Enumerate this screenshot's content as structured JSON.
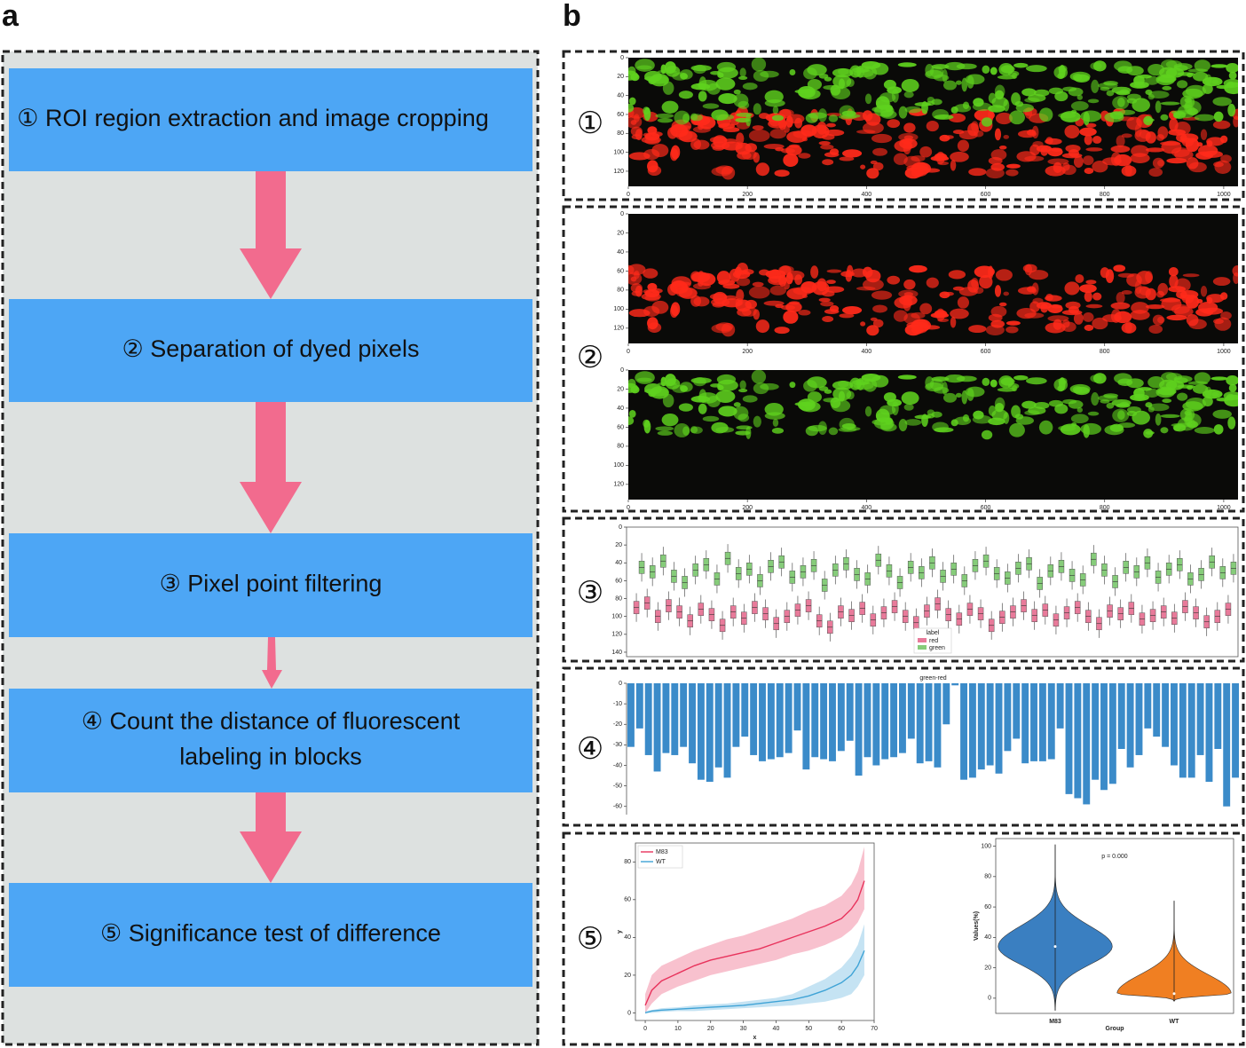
{
  "panel_labels": [
    "a",
    "b"
  ],
  "flowchart": {
    "steps": [
      {
        "lines": [
          "① ROI region extraction and image cropping"
        ]
      },
      {
        "lines": [
          "② Separation of dyed pixels"
        ]
      },
      {
        "lines": [
          "③ Pixel point filtering"
        ]
      },
      {
        "lines": [
          "④ Count the distance of fluorescent",
          "labeling in blocks"
        ]
      },
      {
        "lines": [
          "⑤ Significance test of difference"
        ]
      }
    ]
  },
  "step_markers": [
    "①",
    "②",
    "③",
    "④",
    "⑤"
  ],
  "chart_data": [
    {
      "type": "image",
      "colors": [
        "#ff2a1a",
        "#5fd21e"
      ],
      "xlim": [
        0,
        1024
      ],
      "ylim": [
        0,
        136
      ],
      "xticks": [
        0,
        200,
        400,
        600,
        800,
        1000
      ],
      "yticks": [
        0,
        20,
        40,
        60,
        80,
        100,
        120
      ]
    },
    {
      "type": "image",
      "colors": [
        "#ff2a1a"
      ],
      "xlim": [
        0,
        1024
      ],
      "ylim": [
        0,
        136
      ],
      "xticks": [
        0,
        200,
        400,
        600,
        800,
        1000
      ],
      "yticks": [
        0,
        20,
        40,
        60,
        80,
        100,
        120
      ]
    },
    {
      "type": "image",
      "colors": [
        "#5fd21e"
      ],
      "xlim": [
        0,
        1024
      ],
      "ylim": [
        0,
        136
      ],
      "xticks": [
        0,
        200,
        400,
        600,
        800,
        1000
      ],
      "yticks": [
        0,
        20,
        40,
        60,
        80,
        100,
        120
      ]
    },
    {
      "type": "box",
      "ylim": [
        0,
        145
      ],
      "yticks": [
        0,
        20,
        40,
        60,
        80,
        100,
        120,
        140
      ],
      "legend_title": "label",
      "series": [
        {
          "name": "red",
          "color": "#e87a9a",
          "values": [
            90,
            85,
            100,
            88,
            95,
            105,
            92,
            98,
            110,
            95,
            102,
            90,
            97,
            108,
            100,
            93,
            88,
            105,
            112,
            95,
            99,
            91,
            104,
            96,
            89,
            100,
            107,
            94,
            86,
            98,
            103,
            92,
            97,
            110,
            101,
            95,
            88,
            99,
            93,
            104,
            96,
            90,
            100,
            108,
            94,
            97,
            91,
            103,
            99,
            95,
            102,
            89,
            96,
            106,
            100,
            92
          ]
        },
        {
          "name": "green",
          "color": "#86cc7a",
          "values": [
            45,
            50,
            38,
            55,
            62,
            48,
            42,
            58,
            35,
            52,
            47,
            60,
            44,
            39,
            56,
            50,
            43,
            65,
            48,
            41,
            53,
            58,
            37,
            49,
            62,
            45,
            51,
            40,
            55,
            47,
            60,
            43,
            38,
            52,
            57,
            46,
            41,
            63,
            49,
            44,
            54,
            59,
            36,
            48,
            61,
            45,
            50,
            40,
            56,
            47,
            42,
            58,
            53,
            39,
            51,
            46
          ]
        }
      ]
    },
    {
      "type": "bar",
      "title": "green-red",
      "color": "#3b8bc9",
      "ylim": [
        -64,
        0
      ],
      "yticks": [
        0,
        -10,
        -20,
        -30,
        -40,
        -50,
        -60
      ],
      "values": [
        -31,
        -22,
        -35,
        -43,
        -34,
        -35,
        -31,
        -39,
        -47,
        -48,
        -41,
        -46,
        -31,
        -26,
        -35,
        -38,
        -37,
        -36,
        -34,
        -23,
        -42,
        -36,
        -37,
        -38,
        -33,
        -28,
        -45,
        -36,
        -40,
        -37,
        -36,
        -34,
        -27,
        -39,
        -38,
        -41,
        -20,
        -1,
        -47,
        -46,
        -42,
        -40,
        -44,
        -33,
        -27,
        -39,
        -38,
        -38,
        -37,
        -22,
        -54,
        -56,
        -59,
        -47,
        -52,
        -49,
        -32,
        -41,
        -35,
        -22,
        -26,
        -31,
        -40,
        -46,
        -46,
        -35,
        -48,
        -32,
        -60,
        -46
      ]
    },
    {
      "type": "line",
      "xlabel": "x",
      "ylabel": "y",
      "xlim": [
        -3,
        70
      ],
      "ylim": [
        -4,
        90
      ],
      "xticks": [
        0,
        10,
        20,
        30,
        40,
        50,
        60,
        70
      ],
      "yticks": [
        0,
        20,
        40,
        60,
        80
      ],
      "x": [
        0,
        2,
        5,
        10,
        15,
        20,
        25,
        30,
        35,
        40,
        45,
        50,
        55,
        60,
        63,
        65,
        67
      ],
      "series": [
        {
          "name": "M83",
          "color": "#e8335c",
          "values": [
            4,
            12,
            17,
            21,
            25,
            28,
            30,
            32,
            34,
            37,
            40,
            43,
            46,
            50,
            55,
            60,
            70
          ],
          "upper": [
            10,
            20,
            25,
            29,
            33,
            36,
            39,
            41,
            44,
            47,
            50,
            54,
            57,
            62,
            68,
            75,
            88
          ],
          "lower": [
            0,
            5,
            10,
            14,
            17,
            20,
            22,
            24,
            26,
            28,
            31,
            33,
            36,
            40,
            44,
            48,
            55
          ]
        },
        {
          "name": "WT",
          "color": "#3fa3d6",
          "values": [
            0,
            1,
            1.5,
            2,
            2.5,
            3,
            3.5,
            4,
            5,
            6,
            7,
            9,
            12,
            16,
            20,
            25,
            33
          ],
          "upper": [
            1,
            1.5,
            2.5,
            3,
            4,
            4.5,
            5,
            6,
            7,
            8,
            10,
            14,
            18,
            24,
            30,
            36,
            47
          ],
          "lower": [
            0,
            0,
            0.5,
            1,
            1,
            1.5,
            2,
            2.5,
            3,
            3.5,
            4,
            5,
            6,
            8,
            10,
            14,
            20
          ]
        }
      ]
    },
    {
      "type": "violin",
      "xlabel": "Group",
      "ylabel": "Values(%)",
      "annotation": "p = 0.000",
      "ylim": [
        -10,
        105
      ],
      "yticks": [
        0,
        20,
        40,
        60,
        80,
        100
      ],
      "categories": [
        "M83",
        "WT"
      ],
      "colors": [
        "#3a7fc1",
        "#f07f22"
      ],
      "medians": [
        34,
        3
      ],
      "extents": [
        [
          -8,
          101
        ],
        [
          -2,
          64
        ]
      ]
    }
  ]
}
